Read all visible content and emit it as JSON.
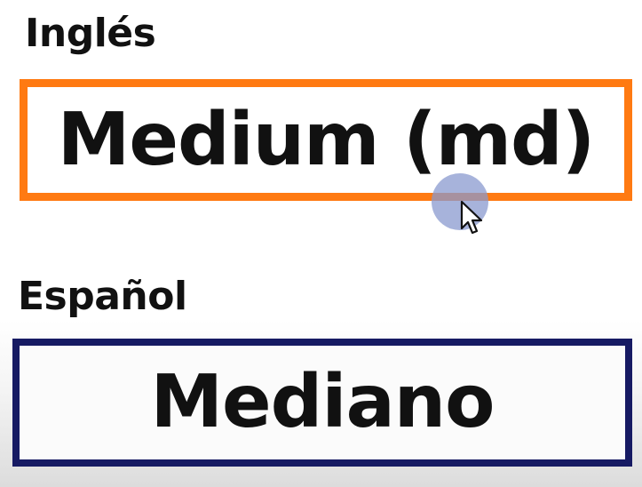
{
  "english": {
    "language_label": "Inglés",
    "term": "Medium (md)"
  },
  "spanish": {
    "language_label": "Español",
    "term": "Mediano"
  },
  "colors": {
    "english_border": "#ff7a12",
    "spanish_border": "#161a63",
    "cursor_halo": "#8a99cf"
  },
  "cursor": {
    "icon": "mouse-pointer-icon"
  }
}
